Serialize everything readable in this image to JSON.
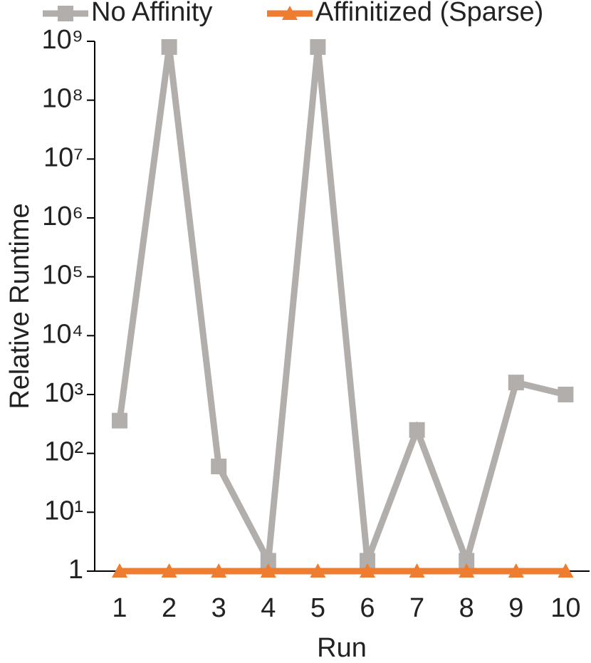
{
  "chart_data": {
    "type": "line",
    "x_label": "Run",
    "y_label": "Relative Runtime",
    "categories": [
      "1",
      "2",
      "3",
      "4",
      "5",
      "6",
      "7",
      "8",
      "9",
      "10"
    ],
    "series": [
      {
        "name": "No Affinity",
        "color": "#b1aeac",
        "marker": "square",
        "values": [
          360,
          800000000,
          60,
          1.5,
          800000000,
          1.5,
          250,
          1.5,
          1600,
          1000
        ]
      },
      {
        "name": "Affinitized (Sparse)",
        "color": "#ee7d31",
        "marker": "triangle",
        "values": [
          1,
          1,
          1,
          1,
          1,
          1,
          1,
          1,
          1,
          1
        ]
      }
    ],
    "ylog": true,
    "ylim": [
      1,
      1000000000
    ],
    "yticks": [
      1,
      {
        "value": 10,
        "label": "10¹"
      },
      {
        "value": 100,
        "label": "10²"
      },
      {
        "value": 1000,
        "label": "10³"
      },
      {
        "value": 10000,
        "label": "10⁴"
      },
      {
        "value": 100000,
        "label": "10⁵"
      },
      {
        "value": 1000000,
        "label": "10⁶"
      },
      {
        "value": 10000000,
        "label": "10⁷"
      },
      {
        "value": 100000000,
        "label": "10⁸"
      },
      {
        "value": 1000000000,
        "label": "10⁹"
      }
    ],
    "legend": "top"
  }
}
